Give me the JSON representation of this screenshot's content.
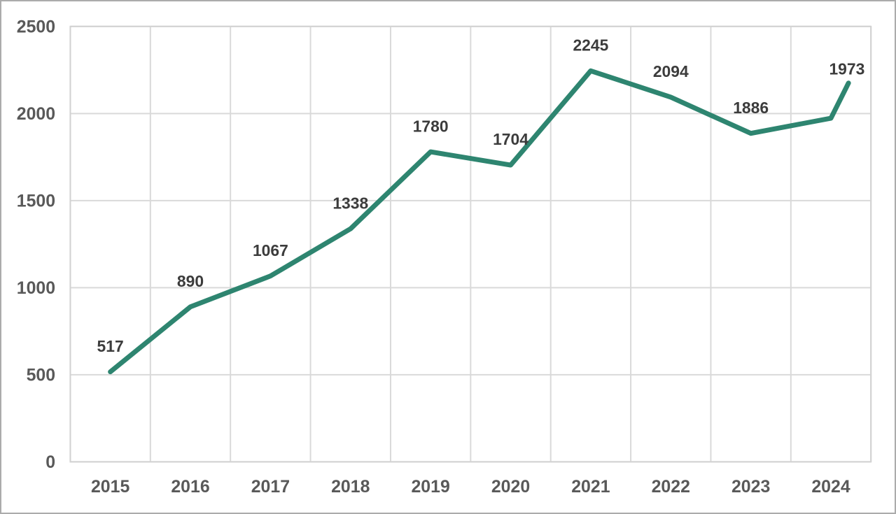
{
  "chart_data": {
    "type": "line",
    "title": "",
    "xlabel": "",
    "ylabel": "",
    "categories": [
      "2015",
      "2016",
      "2017",
      "2018",
      "2019",
      "2020",
      "2021",
      "2022",
      "2023",
      "2024"
    ],
    "values": [
      517,
      890,
      1067,
      1338,
      1780,
      1704,
      2245,
      2094,
      1886,
      1973
    ],
    "ylim": [
      0,
      2500
    ],
    "ytick_labels": [
      "0",
      "500",
      "1000",
      "1500",
      "2000",
      "2500"
    ],
    "grid": "horizontal-and-vertical",
    "legend": "none",
    "data_labels_shown": true,
    "unlabeled_tail_segment": {
      "note": "line continues rising past the 2024 point, ending unlabeled before the right plot edge",
      "end_value_estimate": 2175
    }
  },
  "colors": {
    "line": "#2E8570",
    "data_label_text": "#3C3C3C",
    "axis_label_text": "#595959",
    "gridline": "#D9D9D9",
    "plot_border": "#D2D2D2",
    "outer_border": "#ABABAB",
    "background": "#FFFFFF"
  }
}
